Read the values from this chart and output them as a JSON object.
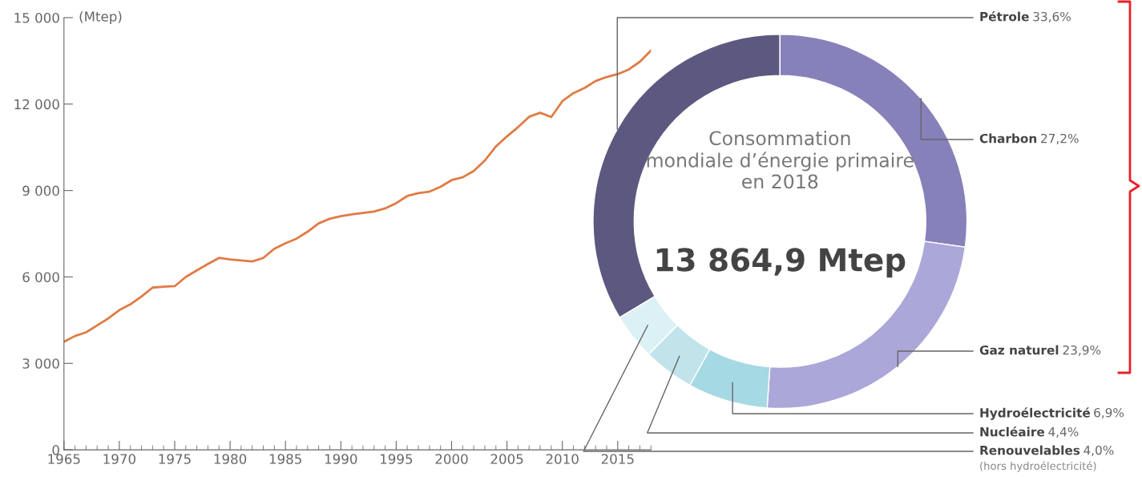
{
  "chart_data": [
    {
      "type": "line",
      "ylabel": "(Mtep)",
      "x": [
        1965,
        1966,
        1967,
        1968,
        1969,
        1970,
        1971,
        1972,
        1973,
        1974,
        1975,
        1976,
        1977,
        1978,
        1979,
        1980,
        1981,
        1982,
        1983,
        1984,
        1985,
        1986,
        1987,
        1988,
        1989,
        1990,
        1991,
        1992,
        1993,
        1994,
        1995,
        1996,
        1997,
        1998,
        1999,
        2000,
        2001,
        2002,
        2003,
        2004,
        2005,
        2006,
        2007,
        2008,
        2009,
        2010,
        2011,
        2012,
        2013,
        2014,
        2015,
        2016,
        2017,
        2018
      ],
      "series": [
        {
          "color": "#e07b45",
          "values": [
            3750,
            3950,
            4080,
            4320,
            4560,
            4850,
            5050,
            5320,
            5630,
            5660,
            5680,
            6000,
            6230,
            6450,
            6660,
            6610,
            6570,
            6540,
            6660,
            6980,
            7170,
            7330,
            7570,
            7860,
            8020,
            8110,
            8170,
            8220,
            8270,
            8380,
            8560,
            8810,
            8910,
            8960,
            9130,
            9360,
            9460,
            9680,
            10040,
            10530,
            10880,
            11200,
            11560,
            11700,
            11550,
            12100,
            12380,
            12560,
            12800,
            12940,
            13040,
            13200,
            13470,
            13860
          ]
        }
      ],
      "xlim": [
        1965,
        2018
      ],
      "xticks": [
        1965,
        1970,
        1975,
        1980,
        1985,
        1990,
        1995,
        2000,
        2005,
        2010,
        2015
      ],
      "ylim": [
        0,
        15000
      ],
      "yticks": [
        0,
        {
          "value": 3000,
          "label": "3 000"
        },
        {
          "value": 6000,
          "label": "6 000"
        },
        {
          "value": 9000,
          "label": "9 000"
        },
        {
          "value": 12000,
          "label": "12 000"
        },
        {
          "value": 15000,
          "label": "15 000"
        }
      ],
      "grid": false,
      "legend": false,
      "marker": "none",
      "line_style": "solid"
    },
    {
      "type": "donut",
      "title": "Consommation\nmondiale d’énergie primaire\nen 2018",
      "categories": [
        "Pétrole",
        "Charbon",
        "Gaz naturel",
        "Hydroélectricité",
        "Nucléaire",
        "Renouvelables"
      ],
      "values": [
        33.6,
        27.2,
        23.9,
        6.9,
        4.4,
        4.0
      ],
      "value_labels": [
        "33,6%",
        "27,2%",
        "23,9%",
        "6,9%",
        "4,4%",
        "4,0%"
      ],
      "colors": [
        "#5c587f",
        "#8681b9",
        "#aba7d8",
        "#a5d9e3",
        "#c0e4ea",
        "#dcf1f5"
      ],
      "annotations": [
        "13 864,9 Mtep",
        "(hors hydroélectricité)"
      ]
    }
  ]
}
